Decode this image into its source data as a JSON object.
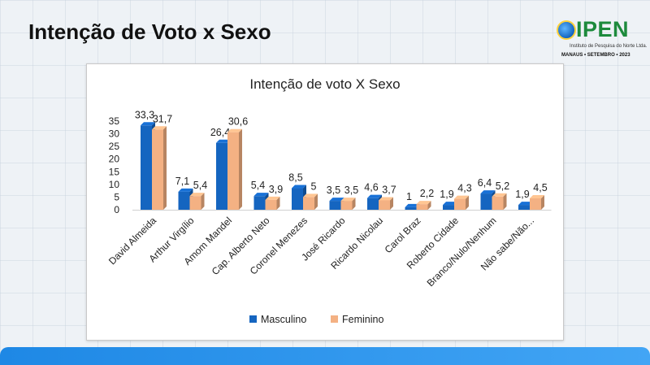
{
  "slide": {
    "title": "Intenção de Voto x Sexo"
  },
  "logo": {
    "brand": "IPEN",
    "subtitle": "Instituto de Pesquisa do Norte Ltda.",
    "tagline": "MANAUS • SETEMBRO • 2023"
  },
  "chart_data": {
    "type": "bar",
    "title": "Intenção de voto X Sexo",
    "xlabel": "",
    "ylabel": "",
    "ylim": [
      0,
      35
    ],
    "yticks": [
      0,
      5,
      10,
      15,
      20,
      25,
      30,
      35
    ],
    "categories": [
      "David Almeida",
      "Arthur Virgílio",
      "Amom Mandel",
      "Cap. Alberto Neto",
      "Coronel Menezes",
      "José Ricardo",
      "Ricardo Nicolau",
      "Carol Braz",
      "Roberto Cidade",
      "Branco/Nulo/Nenhum",
      "Não sabe/Não..."
    ],
    "series": [
      {
        "name": "Masculino",
        "color": "#1565c0",
        "values": [
          33.3,
          7.1,
          26.4,
          5.4,
          8.5,
          3.5,
          4.6,
          1,
          1.9,
          6.4,
          1.9
        ],
        "labels": [
          "33,3",
          "7,1",
          "26,4",
          "5,4",
          "8,5",
          "3,5",
          "4,6",
          "1",
          "1,9",
          "6,4",
          "1,9"
        ]
      },
      {
        "name": "Feminino",
        "color": "#f4b183",
        "values": [
          31.7,
          5.4,
          30.6,
          3.9,
          5,
          3.5,
          3.7,
          2.2,
          4.3,
          5.2,
          4.5
        ],
        "labels": [
          "31,7",
          "5,4",
          "30,6",
          "3,9",
          "5",
          "3,5",
          "3,7",
          "2,2",
          "4,3",
          "5,2",
          "4,5"
        ]
      }
    ],
    "legend": "bottom",
    "grid": false
  }
}
